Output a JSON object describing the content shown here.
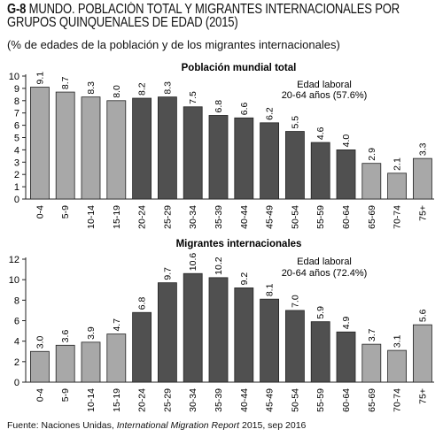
{
  "header": {
    "code": "G-8",
    "title": "MUNDO. POBLACIÓN TOTAL Y MIGRANTES INTERNACIONALES POR GRUPOS QUINQUENALES DE EDAD (2015)",
    "subtitle": "(% de edades de la población y de los migrantes internacionales)"
  },
  "source": {
    "prefix": "Fuente: Naciones Unidas, ",
    "work": "International Migration Report",
    "suffix": " 2015, sep 2016"
  },
  "colors": {
    "light": "#a8a8a8",
    "dark": "#505050",
    "border": "#222222"
  },
  "chart_data": [
    {
      "type": "bar",
      "title": "Población mundial total",
      "annotation": [
        "Edad laboral",
        "20-64 años (57.6%)"
      ],
      "categories": [
        "0-4",
        "5-9",
        "10-14",
        "15-19",
        "20-24",
        "25-29",
        "30-34",
        "35-39",
        "40-44",
        "45-49",
        "50-54",
        "55-59",
        "60-64",
        "65-69",
        "70-74",
        "75+"
      ],
      "values": [
        9.1,
        8.7,
        8.3,
        8.0,
        8.2,
        8.3,
        7.5,
        6.8,
        6.6,
        6.2,
        5.5,
        4.6,
        4.0,
        2.9,
        2.1,
        3.3
      ],
      "labels": [
        "9.1",
        "8.7",
        "8.3",
        "8.0",
        "8.2",
        "8.3",
        "7.5",
        "6.8",
        "6.6",
        "6.2",
        "5.5",
        "4.6",
        "4.0",
        "2.9",
        "2.1",
        "3.3"
      ],
      "highlight": [
        false,
        false,
        false,
        false,
        true,
        true,
        true,
        true,
        true,
        true,
        true,
        true,
        true,
        false,
        false,
        false
      ],
      "ylim": [
        0,
        10
      ],
      "yticks": [
        "0",
        "1",
        "2",
        "3",
        "4",
        "5",
        "6",
        "7",
        "8",
        "9",
        "10"
      ],
      "xlabel": "",
      "ylabel": ""
    },
    {
      "type": "bar",
      "title": "Migrantes internacionales",
      "annotation": [
        "Edad laboral",
        "20-64 años  (72.4%)"
      ],
      "categories": [
        "0-4",
        "5-9",
        "10-14",
        "15-19",
        "20-24",
        "25-29",
        "30-34",
        "35-39",
        "40-44",
        "45-49",
        "50-54",
        "55-59",
        "60-64",
        "65-69",
        "70-74",
        "75+"
      ],
      "values": [
        3.0,
        3.6,
        3.9,
        4.7,
        6.8,
        9.7,
        10.6,
        10.2,
        9.2,
        8.1,
        7.0,
        5.9,
        4.9,
        3.7,
        3.1,
        5.6
      ],
      "labels": [
        "3.0",
        "3.6",
        "3.9",
        "4.7",
        "6.8",
        "9.7",
        "10.6",
        "10.2",
        "9.2",
        "8.1",
        "7.0",
        "5.9",
        "4.9",
        "3.7",
        "3.1",
        "5.6"
      ],
      "highlight": [
        false,
        false,
        false,
        false,
        true,
        true,
        true,
        true,
        true,
        true,
        true,
        true,
        true,
        false,
        false,
        false
      ],
      "ylim": [
        0,
        12
      ],
      "yticks": [
        "0",
        "2",
        "4",
        "6",
        "8",
        "10",
        "12"
      ],
      "xlabel": "",
      "ylabel": ""
    }
  ]
}
